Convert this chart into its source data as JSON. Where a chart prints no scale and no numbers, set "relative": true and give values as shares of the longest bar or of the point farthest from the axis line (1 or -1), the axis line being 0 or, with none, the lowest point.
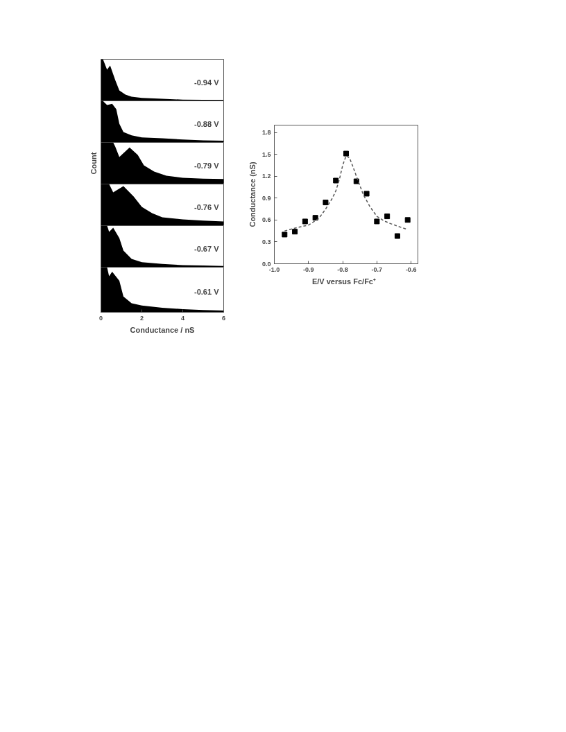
{
  "chart_data": [
    {
      "type": "area",
      "relative": true,
      "color": "#000000",
      "x": [
        0,
        0.1,
        0.3,
        0.45,
        0.7,
        0.9,
        1.2,
        1.5,
        2,
        3,
        4,
        5,
        6
      ],
      "values": [
        1,
        1,
        0.75,
        0.85,
        0.5,
        0.25,
        0.15,
        0.1,
        0.07,
        0.05,
        0.03,
        0.025,
        0.02
      ],
      "xlim": [
        0,
        6
      ],
      "xticks": [
        0,
        2,
        4,
        6
      ],
      "tick_labels": false,
      "annotations": [
        "-0.94 V"
      ]
    },
    {
      "type": "area",
      "relative": true,
      "color": "#000000",
      "x": [
        0,
        0.1,
        0.15,
        0.3,
        0.55,
        0.75,
        0.9,
        1.1,
        1.5,
        2,
        3,
        4,
        5,
        6
      ],
      "values": [
        1,
        1,
        0.97,
        0.9,
        0.93,
        0.8,
        0.45,
        0.25,
        0.17,
        0.12,
        0.1,
        0.07,
        0.05,
        0.04
      ],
      "xlim": [
        0,
        6
      ],
      "xticks": [
        0,
        2,
        4,
        6
      ],
      "tick_labels": false,
      "annotations": [
        "-0.88 V"
      ]
    },
    {
      "type": "area",
      "relative": true,
      "color": "#000000",
      "x": [
        0,
        0.6,
        0.7,
        0.9,
        1.4,
        1.8,
        2.1,
        2.6,
        3.2,
        4,
        5,
        6
      ],
      "values": [
        1,
        1,
        0.9,
        0.65,
        0.88,
        0.7,
        0.45,
        0.3,
        0.2,
        0.15,
        0.13,
        0.12
      ],
      "xlim": [
        0,
        6
      ],
      "xticks": [
        0,
        2,
        4,
        6
      ],
      "tick_labels": false,
      "ylabel": "Count",
      "annotations": [
        "-0.79 V"
      ]
    },
    {
      "type": "area",
      "relative": true,
      "color": "#000000",
      "x": [
        0,
        0.4,
        0.6,
        1.1,
        1.6,
        2,
        2.5,
        3,
        4,
        5,
        6
      ],
      "values": [
        1,
        1,
        0.8,
        0.95,
        0.7,
        0.45,
        0.3,
        0.2,
        0.15,
        0.12,
        0.1
      ],
      "xlim": [
        0,
        6
      ],
      "xticks": [
        0,
        2,
        4,
        6
      ],
      "tick_labels": false,
      "annotations": [
        "-0.76 V"
      ]
    },
    {
      "type": "area",
      "relative": true,
      "color": "#000000",
      "x": [
        0,
        0.3,
        0.35,
        0.4,
        0.6,
        0.9,
        1.1,
        1.5,
        2,
        3,
        4,
        5,
        6
      ],
      "values": [
        1,
        1,
        0.93,
        0.85,
        0.95,
        0.7,
        0.4,
        0.2,
        0.12,
        0.08,
        0.05,
        0.04,
        0.03
      ],
      "xlim": [
        0,
        6
      ],
      "xticks": [
        0,
        2,
        4,
        6
      ],
      "tick_labels": false,
      "annotations": [
        "-0.67 V"
      ]
    },
    {
      "type": "area",
      "relative": true,
      "color": "#000000",
      "x": [
        0,
        0.3,
        0.35,
        0.4,
        0.55,
        0.9,
        1.1,
        1.5,
        2,
        3,
        4,
        5,
        6
      ],
      "values": [
        1,
        1,
        0.9,
        0.8,
        0.9,
        0.7,
        0.35,
        0.2,
        0.15,
        0.1,
        0.07,
        0.05,
        0.04
      ],
      "xlim": [
        0,
        6
      ],
      "xticks": [
        0,
        2,
        4,
        6
      ],
      "tick_labels": "x",
      "xlabel": "Conductance / nS",
      "annotations": [
        "-0.61 V"
      ]
    },
    {
      "type": "scatter",
      "xlabel": "E/V   versus Fc/Fc⁺",
      "ylabel": "Conductance (nS)",
      "xlim": [
        -1.0,
        -0.58
      ],
      "ylim": [
        0,
        1.9
      ],
      "xticks": [
        {
          "value": -1.0,
          "label": "-1.0"
        },
        {
          "value": -0.9,
          "label": "-0.9"
        },
        {
          "value": -0.8,
          "label": "-0.8"
        },
        {
          "value": -0.7,
          "label": "-0.7"
        },
        {
          "value": -0.6,
          "label": "-0.6"
        }
      ],
      "yticks": [
        {
          "value": 0,
          "label": "0.0"
        },
        0.3,
        0.6,
        0.9,
        1.2,
        1.5,
        1.8
      ],
      "series": [
        {
          "type": "scatter",
          "marker": "square",
          "color": "#000000",
          "x": [
            -0.97,
            -0.94,
            -0.91,
            -0.88,
            -0.85,
            -0.82,
            -0.79,
            -0.76,
            -0.73,
            -0.7,
            -0.67,
            -0.64,
            -0.61
          ],
          "values": [
            0.4,
            0.44,
            0.58,
            0.63,
            0.84,
            1.14,
            1.51,
            1.13,
            0.96,
            0.58,
            0.65,
            0.38,
            0.6
          ]
        },
        {
          "type": "line",
          "line_style": "dashed",
          "color": "#555555",
          "x": [
            -0.97,
            -0.93,
            -0.9,
            -0.87,
            -0.85,
            -0.83,
            -0.82,
            -0.81,
            -0.8,
            -0.79,
            -0.78,
            -0.77,
            -0.76,
            -0.74,
            -0.72,
            -0.7,
            -0.68,
            -0.66,
            -0.63,
            -0.61
          ],
          "values": [
            0.45,
            0.5,
            0.53,
            0.62,
            0.75,
            0.9,
            1.0,
            1.15,
            1.35,
            1.48,
            1.45,
            1.33,
            1.2,
            0.95,
            0.78,
            0.65,
            0.59,
            0.55,
            0.5,
            0.47
          ]
        }
      ]
    }
  ]
}
